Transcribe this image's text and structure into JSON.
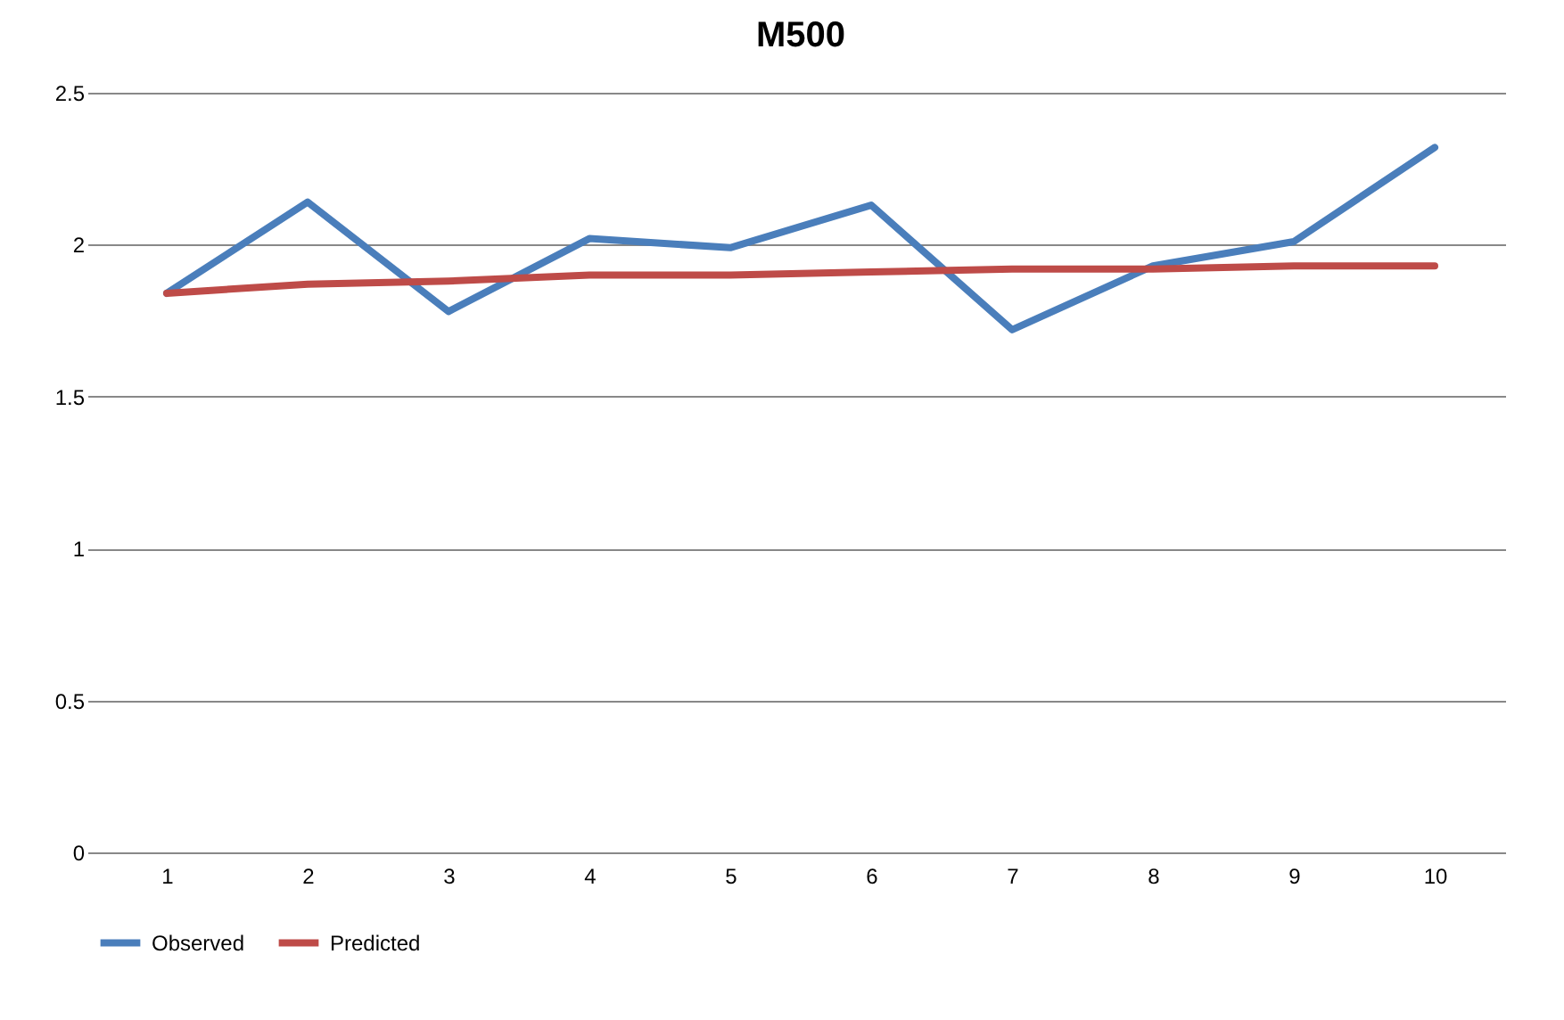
{
  "chart_data": {
    "type": "line",
    "title": "M500",
    "categories": [
      "1",
      "2",
      "3",
      "4",
      "5",
      "6",
      "7",
      "8",
      "9",
      "10"
    ],
    "series": [
      {
        "name": "Observed",
        "color": "#4a7ebb",
        "values": [
          1.84,
          2.14,
          1.78,
          2.02,
          1.99,
          2.13,
          1.72,
          1.93,
          2.01,
          2.32
        ]
      },
      {
        "name": "Predicted",
        "color": "#be4b48",
        "values": [
          1.84,
          1.87,
          1.88,
          1.9,
          1.9,
          1.91,
          1.92,
          1.92,
          1.93,
          1.93
        ]
      }
    ],
    "ylim": [
      0,
      2.5
    ],
    "yticks": [
      0,
      0.5,
      1,
      1.5,
      2,
      2.5
    ],
    "grid": "y",
    "legend": "bottom",
    "marker": "none",
    "line_style": "solid"
  }
}
